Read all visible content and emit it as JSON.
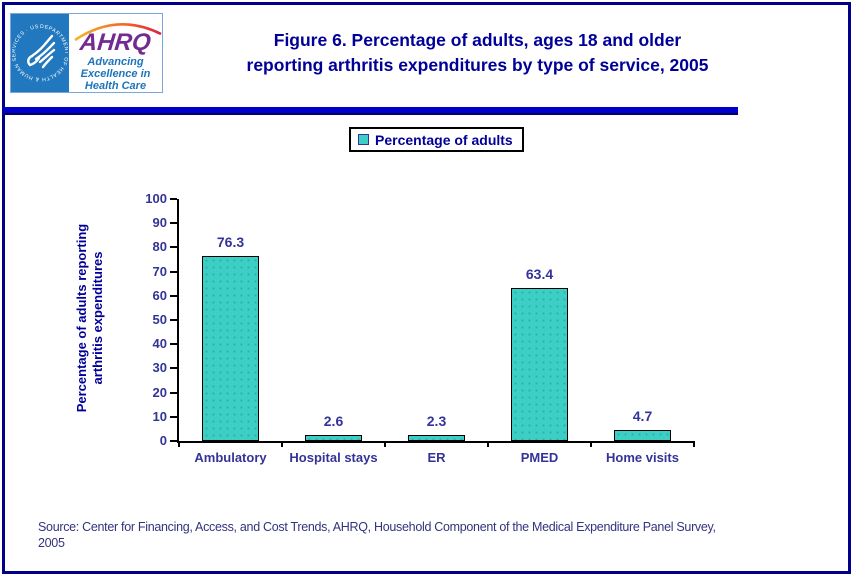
{
  "header": {
    "hhs_logo": {
      "circle_text": "DEPARTMENT OF HEALTH & HUMAN SERVICES · USA"
    },
    "ahrq_logo": {
      "word": "AHRQ",
      "tagline_line1": "Advancing",
      "tagline_line2": "Excellence in",
      "tagline_line3": "Health Care"
    },
    "title_line1": "Figure 6. Percentage of adults, ages 18 and older",
    "title_line2": "reporting arthritis expenditures by type of service, 2005"
  },
  "legend": {
    "label": "Percentage of adults",
    "swatch_color": "#3DCEC6"
  },
  "chart_data": {
    "type": "bar",
    "title": "Figure 6. Percentage of adults, ages 18 and older reporting arthritis expenditures by type of service, 2005",
    "series_name": "Percentage of adults",
    "categories": [
      "Ambulatory",
      "Hospital stays",
      "ER",
      "PMED",
      "Home visits"
    ],
    "values": [
      76.3,
      2.6,
      2.3,
      63.4,
      4.7
    ],
    "value_labels": [
      "76.3",
      "2.6",
      "2.3",
      "63.4",
      "4.7"
    ],
    "xlabel": "",
    "ylabel_line1": "Percentage of adults reporting",
    "ylabel_line2": "arthritis expenditures",
    "ylim": [
      0,
      100
    ],
    "ytick_step": 10,
    "bar_color": "#3DCEC6",
    "grid": "off",
    "legend_position": "top-center"
  },
  "source": {
    "line1": "Source: Center for Financing, Access, and Cost Trends, AHRQ, Household Component of the Medical Expenditure Panel Survey,",
    "line2": "2005"
  },
  "colors": {
    "frame": "#00008B",
    "title_text": "#000099",
    "axis_text": "#333399",
    "header_rule": "#0000CC",
    "hhs_blue": "#2178BE",
    "ahrq_purple": "#722B90",
    "tagline_blue": "#1C75BB",
    "bar_teal": "#3DCEC6"
  }
}
